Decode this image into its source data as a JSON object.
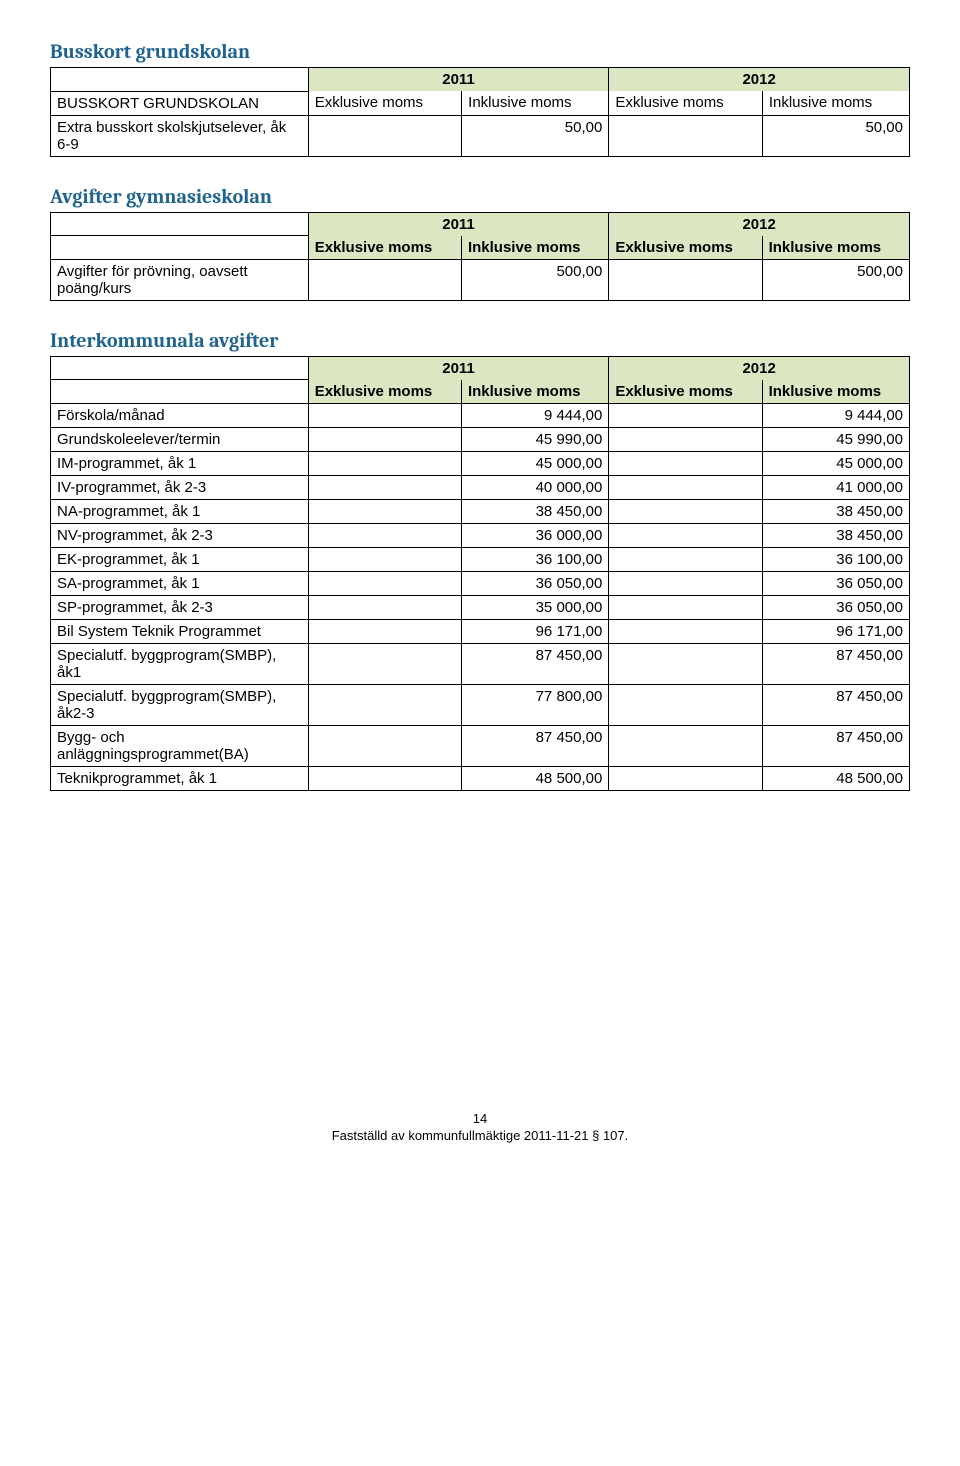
{
  "colors": {
    "heading": "#1f6390",
    "olive": "#dbe6c3",
    "border": "#000000",
    "text": "#000000",
    "background": "#ffffff"
  },
  "section1": {
    "title": "Busskort grundskolan",
    "row_label_header": "BUSSKORT GRUNDSKOLAN",
    "year1": "2011",
    "year2": "2012",
    "col1": "Exklusive moms",
    "col2": "Inklusive moms",
    "col3": "Exklusive moms",
    "col4": "Inklusive moms",
    "row1_label": "Extra busskort skolskjutselever, åk 6-9",
    "row1_v2": "50,00",
    "row1_v4": "50,00"
  },
  "section2": {
    "title": "Avgifter gymnasieskolan",
    "year1": "2011",
    "year2": "2012",
    "col1": "Exklusive moms",
    "col2": "Inklusive moms",
    "col3": "Exklusive moms",
    "col4": "Inklusive moms",
    "row1_label": "Avgifter för prövning, oavsett poäng/kurs",
    "row1_v2": "500,00",
    "row1_v4": "500,00"
  },
  "section3": {
    "title": "Interkommunala avgifter",
    "year1": "2011",
    "year2": "2012",
    "col1": "Exklusive moms",
    "col2": "Inklusive moms",
    "col3": "Exklusive moms",
    "col4": "Inklusive moms",
    "rows": [
      {
        "label": "Förskola/månad",
        "v2": "9 444,00",
        "v4": "9 444,00"
      },
      {
        "label": "Grundskoleelever/termin",
        "v2": "45 990,00",
        "v4": "45 990,00"
      },
      {
        "label": "IM-programmet, åk 1",
        "v2": "45 000,00",
        "v4": "45 000,00"
      },
      {
        "label": "IV-programmet, åk 2-3",
        "v2": "40 000,00",
        "v4": "41 000,00"
      },
      {
        "label": "NA-programmet, åk 1",
        "v2": "38 450,00",
        "v4": "38 450,00"
      },
      {
        "label": "NV-programmet, åk 2-3",
        "v2": "36 000,00",
        "v4": "38 450,00"
      },
      {
        "label": "EK-programmet, åk 1",
        "v2": "36 100,00",
        "v4": "36 100,00"
      },
      {
        "label": "SA-programmet, åk 1",
        "v2": "36 050,00",
        "v4": "36 050,00"
      },
      {
        "label": "SP-programmet, åk 2-3",
        "v2": "35 000,00",
        "v4": "36 050,00"
      },
      {
        "label": "Bil System Teknik Programmet",
        "v2": "96 171,00",
        "v4": "96 171,00"
      },
      {
        "label": "Specialutf. byggprogram(SMBP), åk1",
        "v2": "87 450,00",
        "v4": "87 450,00"
      },
      {
        "label": "Specialutf. byggprogram(SMBP), åk2-3",
        "v2": "77 800,00",
        "v4": "87 450,00"
      },
      {
        "label": "Bygg- och anläggningsprogrammet(BA)",
        "v2": "87 450,00",
        "v4": "87 450,00"
      },
      {
        "label": "Teknikprogrammet, åk 1",
        "v2": "48 500,00",
        "v4": "48 500,00"
      }
    ]
  },
  "footer": {
    "page": "14",
    "text": "Fastställd av kommunfullmäktige 2011-11-21 § 107."
  }
}
